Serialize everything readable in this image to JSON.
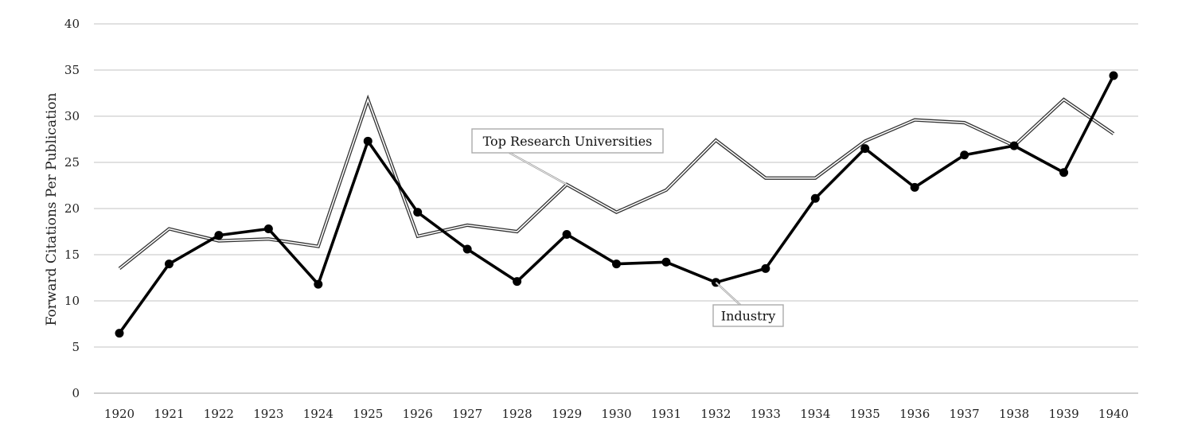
{
  "chart_data": {
    "type": "line",
    "ylabel": "Forward Citations Per Publication",
    "xlabel": "",
    "ylim": [
      0,
      40
    ],
    "yticks": [
      0,
      5,
      10,
      15,
      20,
      25,
      30,
      35,
      40
    ],
    "grid": true,
    "categories": [
      "1920",
      "1921",
      "1922",
      "1923",
      "1924",
      "1925",
      "1926",
      "1927",
      "1928",
      "1929",
      "1930",
      "1931",
      "1932",
      "1933",
      "1934",
      "1935",
      "1936",
      "1937",
      "1938",
      "1939",
      "1940"
    ],
    "series": [
      {
        "name": "Top Research Universities",
        "style": "double-line",
        "values": [
          13.5,
          17.8,
          16.5,
          16.7,
          15.9,
          31.8,
          17.0,
          18.2,
          17.5,
          22.6,
          19.6,
          22.0,
          27.4,
          23.3,
          23.3,
          27.3,
          29.6,
          29.3,
          26.8,
          31.8,
          28.1
        ]
      },
      {
        "name": "Industry",
        "style": "solid-markers",
        "color": "#000000",
        "values": [
          6.5,
          14.0,
          17.1,
          17.8,
          11.8,
          27.3,
          19.6,
          15.6,
          12.1,
          17.2,
          14.0,
          14.2,
          12.0,
          13.5,
          21.1,
          26.5,
          22.3,
          25.8,
          26.8,
          23.9,
          34.4
        ]
      }
    ],
    "annotations": [
      {
        "text": "Top Research Universities",
        "series": 0,
        "point_index": 9
      },
      {
        "text": "Industry",
        "series": 1,
        "point_index": 12
      }
    ]
  }
}
